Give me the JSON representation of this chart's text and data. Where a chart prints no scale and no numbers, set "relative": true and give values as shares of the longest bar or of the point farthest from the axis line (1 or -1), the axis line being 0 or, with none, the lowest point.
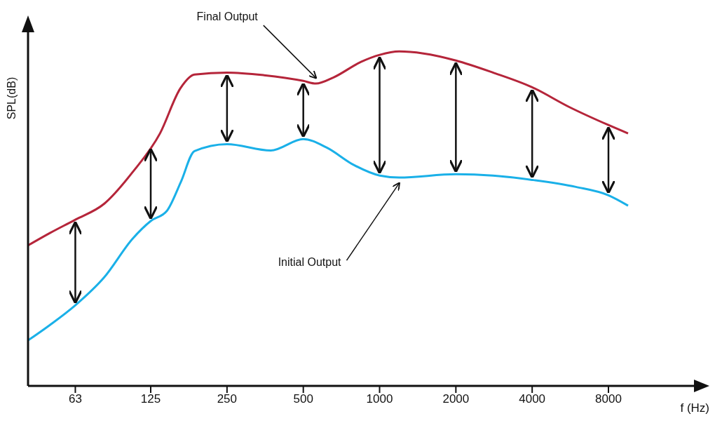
{
  "chart_data": {
    "type": "line",
    "relative": true,
    "xlabel": "f (Hz)",
    "ylabel": "SPL(dB)",
    "log": "x",
    "xlim": [
      41,
      17400
    ],
    "xticks": [
      63,
      125,
      250,
      500,
      1000,
      2000,
      4000,
      8000
    ],
    "marker": "none",
    "line_style": "solid",
    "series": [
      {
        "color": "#b5253a",
        "x": [
          41,
          50,
          63,
          82,
          106,
          136,
          164,
          186,
          250,
          350,
          500,
          561,
          656,
          845,
          1002,
          1195,
          1490,
          2000,
          2800,
          4000,
          5600,
          8000,
          9560
        ],
        "values": [
          0.42,
          0.457,
          0.497,
          0.545,
          0.639,
          0.755,
          0.891,
          0.931,
          0.937,
          0.929,
          0.912,
          0.904,
          0.922,
          0.969,
          0.99,
          1,
          0.994,
          0.973,
          0.937,
          0.893,
          0.834,
          0.78,
          0.755
        ]
      },
      {
        "color": "#1ab0e8",
        "x": [
          41,
          50,
          63,
          82,
          106,
          125,
          145,
          164,
          186,
          250,
          372,
          500,
          617,
          794,
          1002,
          1195,
          2000,
          2800,
          4000,
          5950,
          8000,
          9560
        ],
        "values": [
          0.136,
          0.182,
          0.241,
          0.325,
          0.44,
          0.493,
          0.524,
          0.608,
          0.702,
          0.723,
          0.704,
          0.738,
          0.713,
          0.66,
          0.629,
          0.623,
          0.633,
          0.629,
          0.616,
          0.595,
          0.57,
          0.539
        ]
      }
    ],
    "annotations": [
      {
        "text": "Final Output",
        "x": 561,
        "y": 0.904
      },
      {
        "text": "Initial Output",
        "x": 1195,
        "y": 0.623
      }
    ]
  }
}
